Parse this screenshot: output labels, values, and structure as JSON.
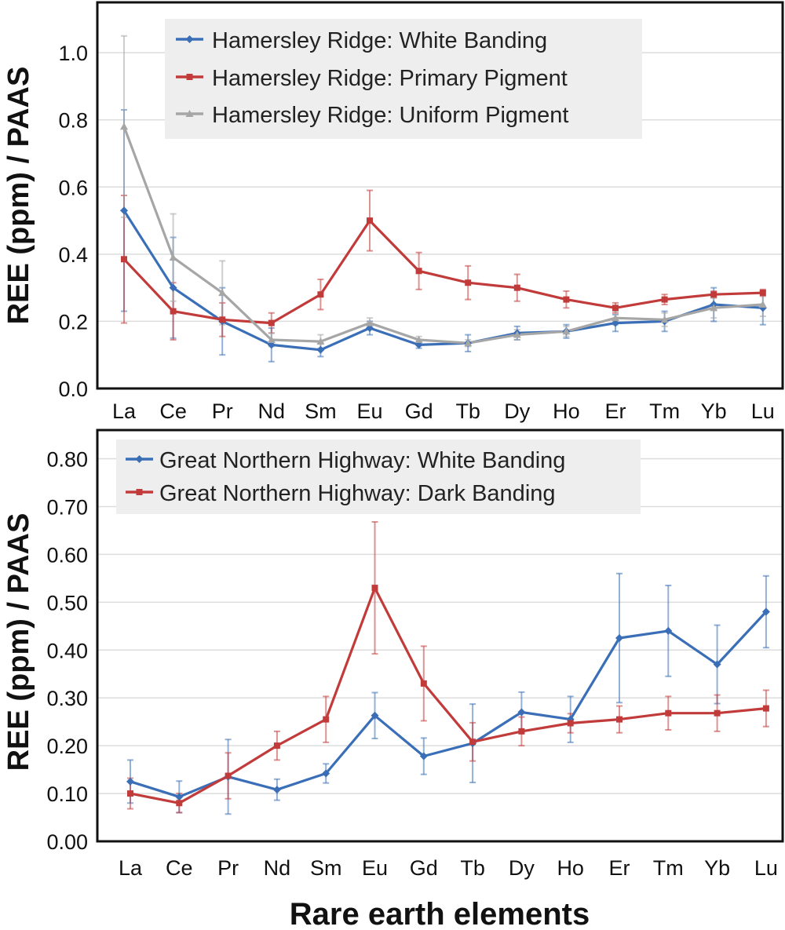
{
  "figure": {
    "xlabel": "Rare earth elements"
  },
  "chart_data": [
    {
      "type": "line",
      "panel": "top",
      "title": "",
      "ylabel": "REE (ppm) / PAAS",
      "xlabel": "",
      "categories": [
        "La",
        "Ce",
        "Pr",
        "Nd",
        "Sm",
        "Eu",
        "Gd",
        "Tb",
        "Dy",
        "Ho",
        "Er",
        "Tm",
        "Yb",
        "Lu"
      ],
      "ylim": [
        0,
        1.15
      ],
      "yticks": [
        "0.0",
        "0.2",
        "0.4",
        "0.6",
        "0.8",
        "1.0"
      ],
      "ytick_values": [
        0,
        0.2,
        0.4,
        0.6,
        0.8,
        1.0
      ],
      "grid": true,
      "legend_position": "top-left",
      "series": [
        {
          "name": "Hamersley Ridge: White Banding",
          "color": "#3a6fb7",
          "marker": "diamond",
          "values": [
            0.53,
            0.3,
            0.2,
            0.13,
            0.115,
            0.18,
            0.13,
            0.135,
            0.165,
            0.17,
            0.195,
            0.2,
            0.25,
            0.24
          ],
          "errors": [
            0.3,
            0.15,
            0.1,
            0.05,
            0.02,
            0.02,
            0.01,
            0.025,
            0.02,
            0.02,
            0.025,
            0.03,
            0.05,
            0.05
          ]
        },
        {
          "name": "Hamersley Ridge: Primary Pigment",
          "color": "#c23b3b",
          "marker": "square",
          "values": [
            0.385,
            0.23,
            0.205,
            0.195,
            0.28,
            0.5,
            0.35,
            0.315,
            0.3,
            0.265,
            0.24,
            0.265,
            0.28,
            0.285
          ],
          "errors": [
            0.19,
            0.085,
            0.05,
            0.03,
            0.045,
            0.09,
            0.055,
            0.05,
            0.04,
            0.025,
            0.015,
            0.015,
            0.01,
            0.01
          ]
        },
        {
          "name": "Hamersley Ridge: Uniform Pigment",
          "color": "#a6a6a6",
          "marker": "triangle",
          "values": [
            0.78,
            0.39,
            0.285,
            0.145,
            0.14,
            0.195,
            0.145,
            0.135,
            0.16,
            0.17,
            0.21,
            0.205,
            0.24,
            0.25
          ],
          "errors": [
            0.27,
            0.13,
            0.095,
            0.02,
            0.02,
            0.015,
            0.01,
            0.01,
            0.015,
            0.015,
            0.02,
            0.02,
            0.03,
            0.035
          ]
        }
      ]
    },
    {
      "type": "line",
      "panel": "bottom",
      "title": "",
      "ylabel": "REE (ppm) / PAAS",
      "xlabel": "Rare earth elements",
      "categories": [
        "La",
        "Ce",
        "Pr",
        "Nd",
        "Sm",
        "Eu",
        "Gd",
        "Tb",
        "Dy",
        "Ho",
        "Er",
        "Tm",
        "Yb",
        "Lu"
      ],
      "ylim": [
        0,
        0.86
      ],
      "yticks": [
        "0.00",
        "0.10",
        "0.20",
        "0.30",
        "0.40",
        "0.50",
        "0.60",
        "0.70",
        "0.80"
      ],
      "ytick_values": [
        0,
        0.1,
        0.2,
        0.3,
        0.4,
        0.5,
        0.6,
        0.7,
        0.8
      ],
      "grid": true,
      "legend_position": "top-left",
      "series": [
        {
          "name": "Great Northern Highway: White Banding",
          "color": "#3a6fb7",
          "marker": "diamond",
          "values": [
            0.125,
            0.093,
            0.135,
            0.108,
            0.142,
            0.263,
            0.178,
            0.205,
            0.27,
            0.255,
            0.425,
            0.44,
            0.37,
            0.48
          ],
          "errors": [
            0.045,
            0.033,
            0.078,
            0.022,
            0.02,
            0.048,
            0.038,
            0.082,
            0.042,
            0.048,
            0.135,
            0.095,
            0.082,
            0.075
          ]
        },
        {
          "name": "Great Northern Highway: Dark Banding",
          "color": "#c23b3b",
          "marker": "square",
          "values": [
            0.1,
            0.08,
            0.137,
            0.2,
            0.255,
            0.53,
            0.33,
            0.208,
            0.23,
            0.247,
            0.255,
            0.268,
            0.268,
            0.278
          ],
          "errors": [
            0.032,
            0.02,
            0.048,
            0.03,
            0.048,
            0.138,
            0.078,
            0.04,
            0.03,
            0.02,
            0.028,
            0.035,
            0.038,
            0.038
          ]
        }
      ]
    }
  ]
}
